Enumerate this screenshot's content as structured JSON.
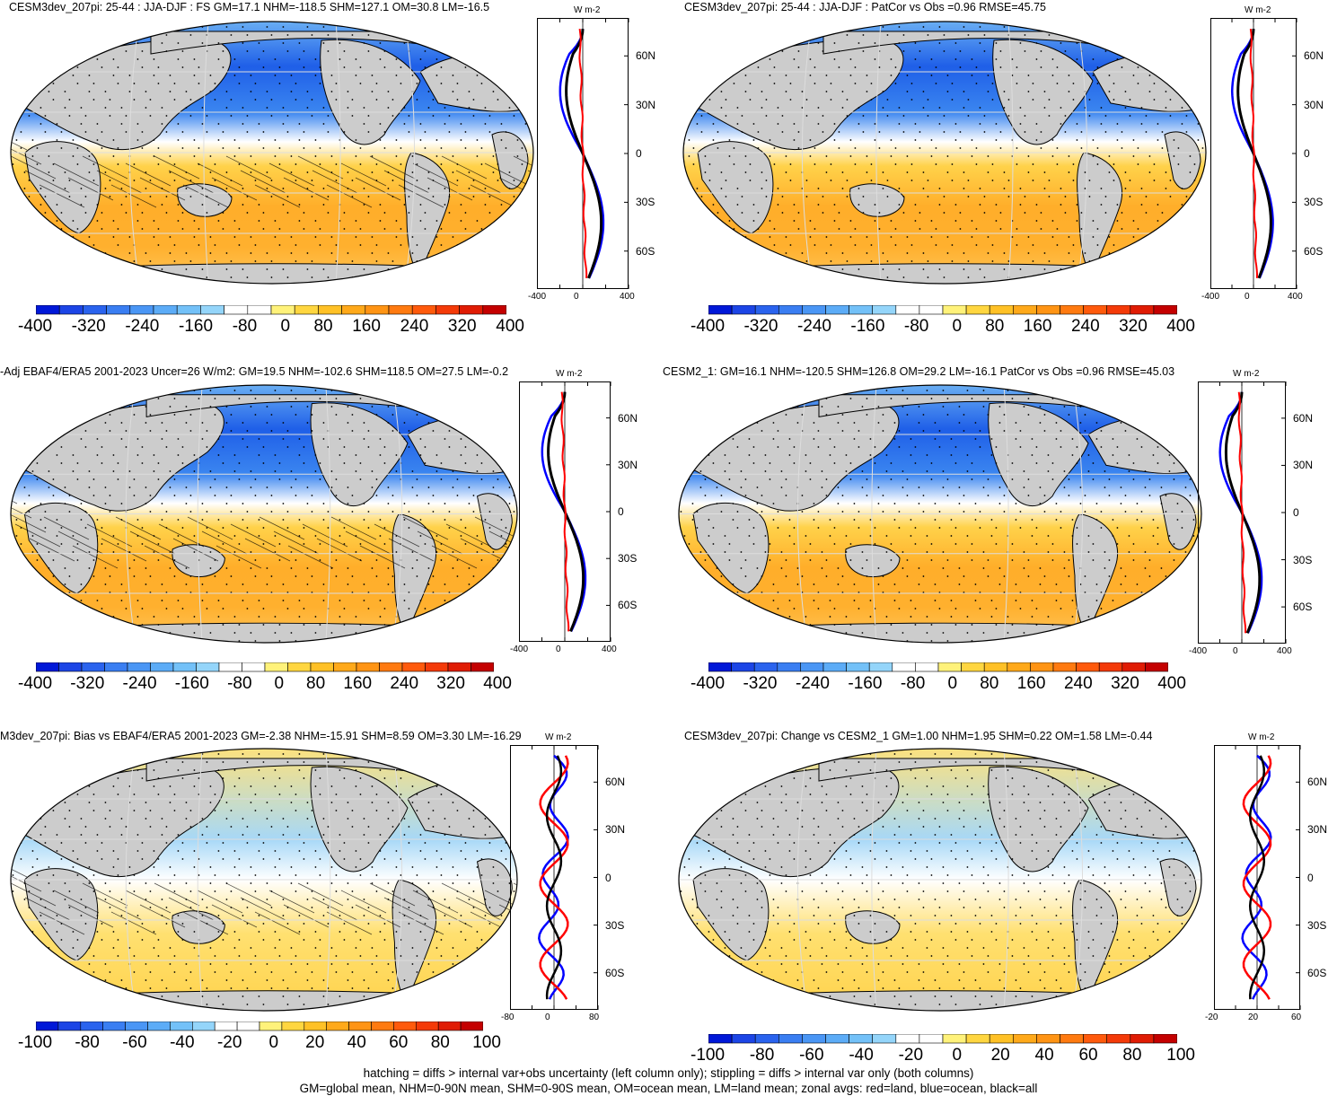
{
  "panels": [
    {
      "title": "CESM3dev_207pi: 25-44 : JJA-DJF : FS GM=17.1 NHM=-118.5 SHM=127.1 OM=30.8 LM=-16.5",
      "cbar_labels": [
        "-400",
        "-320",
        "-240",
        "-160",
        "-80",
        "0",
        "80",
        "160",
        "240",
        "320",
        "400"
      ],
      "zonal_ticks": [
        "-400",
        "0",
        "400"
      ],
      "lat_labels": [
        "60N",
        "30N",
        "0",
        "30S",
        "60S"
      ],
      "unit": "W m-2",
      "hatching": true
    },
    {
      "title": "CESM3dev_207pi: 25-44 : JJA-DJF : PatCor vs Obs =0.96 RMSE=45.75",
      "cbar_labels": [
        "-400",
        "-320",
        "-240",
        "-160",
        "-80",
        "0",
        "80",
        "160",
        "240",
        "320",
        "400"
      ],
      "zonal_ticks": [
        "-400",
        "0",
        "400"
      ],
      "lat_labels": [
        "60N",
        "30N",
        "0",
        "30S",
        "60S"
      ],
      "unit": "W m-2",
      "hatching": false
    },
    {
      "title": "-Adj EBAF4/ERA5 2001-2023 Uncer=26 W/m2: GM=19.5 NHM=-102.6 SHM=118.5 OM=27.5 LM=-0.2",
      "cbar_labels": [
        "-400",
        "-320",
        "-240",
        "-160",
        "-80",
        "0",
        "80",
        "160",
        "240",
        "320",
        "400"
      ],
      "zonal_ticks": [
        "-400",
        "0",
        "400"
      ],
      "lat_labels": [
        "60N",
        "30N",
        "0",
        "30S",
        "60S"
      ],
      "unit": "W m-2",
      "hatching": true
    },
    {
      "title": "CESM2_1: GM=16.1 NHM=-120.5 SHM=126.8 OM=29.2 LM=-16.1 PatCor vs Obs =0.96 RMSE=45.03",
      "cbar_labels": [
        "-400",
        "-320",
        "-240",
        "-160",
        "-80",
        "0",
        "80",
        "160",
        "240",
        "320",
        "400"
      ],
      "zonal_ticks": [
        "-400",
        "0",
        "400"
      ],
      "lat_labels": [
        "60N",
        "30N",
        "0",
        "30S",
        "60S"
      ],
      "unit": "W m-2",
      "hatching": false
    },
    {
      "title": "M3dev_207pi: Bias vs EBAF4/ERA5 2001-2023 GM=-2.38 NHM=-15.91 SHM=8.59 OM=3.30 LM=-16.29",
      "cbar_labels": [
        "-100",
        "-80",
        "-60",
        "-40",
        "-20",
        "0",
        "20",
        "40",
        "60",
        "80",
        "100"
      ],
      "zonal_ticks": [
        "-80",
        "0",
        "80"
      ],
      "lat_labels": [
        "60N",
        "30N",
        "0",
        "30S",
        "60S"
      ],
      "unit": "W m-2",
      "hatching": true
    },
    {
      "title": "CESM3dev_207pi: Change vs CESM2_1 GM=1.00 NHM=1.95 SHM=0.22 OM=1.58 LM=-0.44",
      "cbar_labels": [
        "-100",
        "-80",
        "-60",
        "-40",
        "-20",
        "0",
        "20",
        "40",
        "60",
        "80",
        "100"
      ],
      "zonal_ticks": [
        "-20",
        "20",
        "60"
      ],
      "lat_labels": [
        "60N",
        "30N",
        "0",
        "30S",
        "60S"
      ],
      "unit": "W m-2",
      "hatching": false
    }
  ],
  "footer": {
    "line1": "hatching = diffs > internal var+obs uncertainty (left column only); stippling = diffs > internal var only (both columns)",
    "line2": "GM=global mean, NHM=0-90N mean, SHM=0-90S mean, OM=ocean mean, LM=land mean; zonal avgs: red=land, blue=ocean, black=all"
  },
  "colors": {
    "cbar": [
      "#0018d8",
      "#1c45e6",
      "#2a63ee",
      "#3a7ef2",
      "#4a96f5",
      "#5cacf7",
      "#73c1f8",
      "#94d5fa",
      "#ffffff",
      "#ffffff",
      "#fff27a",
      "#ffd640",
      "#ffc126",
      "#ffa91a",
      "#ff9414",
      "#ff7a10",
      "#ff5a0c",
      "#f43a08",
      "#e01c04",
      "#c40000"
    ],
    "land": "#cccccc",
    "zonal_land": "#ff0000",
    "zonal_ocean": "#0000ff",
    "zonal_all": "#000000"
  }
}
